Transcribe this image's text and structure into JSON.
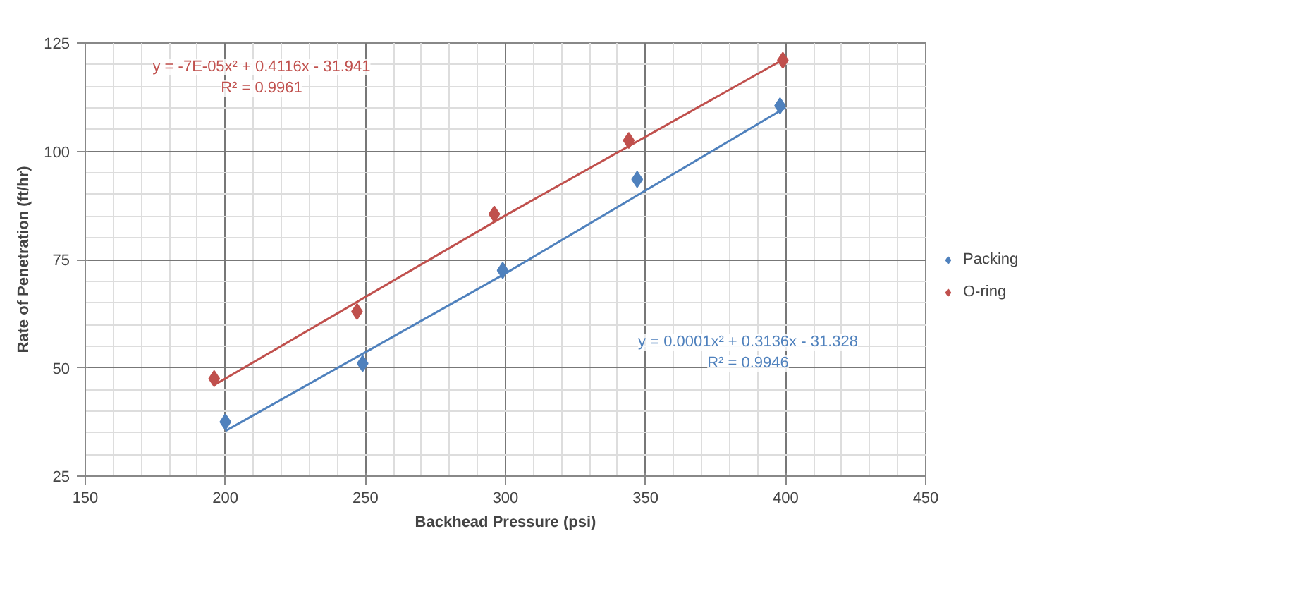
{
  "chart_data": {
    "type": "scatter",
    "xlabel": "Backhead Pressure (psi)",
    "ylabel": "Rate of Penetration (ft/hr)",
    "series": [
      {
        "name": "Packing",
        "color": "#4f81bd",
        "x": [
          200,
          249,
          299,
          347,
          398
        ],
        "values": [
          37.5,
          51,
          72.5,
          93.5,
          110.5
        ],
        "marker": "diamond"
      },
      {
        "name": "O-ring",
        "color": "#c0504d",
        "x": [
          196,
          247,
          296,
          344,
          399
        ],
        "values": [
          47.5,
          63,
          85.5,
          102.5,
          121
        ],
        "marker": "diamond"
      },
      {
        "type": "line",
        "color": "#4f81bd",
        "x": [
          200,
          300,
          400
        ],
        "values": [
          35.4,
          71.8,
          110.1
        ],
        "marker": "none"
      },
      {
        "type": "line",
        "color": "#c0504d",
        "x": [
          196,
          300,
          400
        ],
        "values": [
          46.0,
          85.2,
          121.5
        ],
        "marker": "none"
      }
    ],
    "annotations": [
      "y = -7E-05x² + 0.4116x - 31.941",
      "R² = 0.9961",
      "y = 0.0001x² + 0.3136x - 31.328",
      "R² = 0.9946"
    ],
    "xlim": [
      150,
      450
    ],
    "xticks": [
      150,
      200,
      250,
      300,
      350,
      400,
      450
    ],
    "ylim": [
      25,
      125
    ],
    "yticks": [
      25,
      50,
      75,
      100,
      125
    ],
    "grid": true,
    "legend": "right",
    "line_style": "solid"
  }
}
